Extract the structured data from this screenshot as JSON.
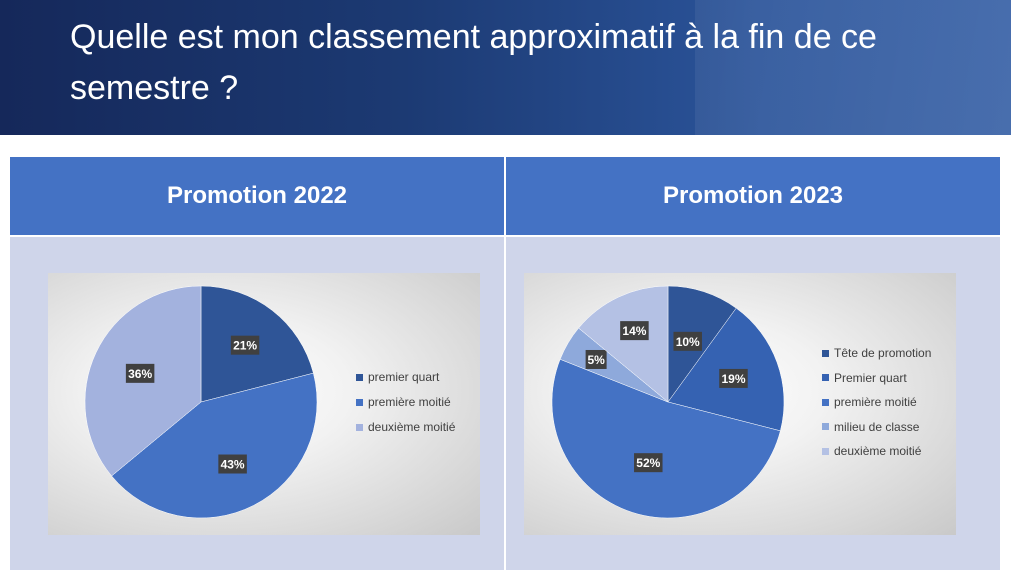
{
  "title": "Quelle est mon classement approximatif à la fin de ce semestre ?",
  "columns": [
    {
      "header": "Promotion 2022"
    },
    {
      "header": "Promotion 2023"
    }
  ],
  "chart_data": [
    {
      "type": "pie",
      "categories": [
        "premier quart",
        "première moitié",
        "deuxième moitié"
      ],
      "values": [
        21,
        43,
        36
      ],
      "labels": [
        "21%",
        "43%",
        "36%"
      ],
      "colors": [
        "#2f5597",
        "#4472c4",
        "#a3b2de"
      ],
      "legend": "right"
    },
    {
      "type": "pie",
      "categories": [
        "Tête de promotion",
        "Premier quart",
        "première moitié",
        "milieu de classe",
        "deuxième moitié"
      ],
      "values": [
        10,
        19,
        52,
        5,
        14
      ],
      "labels": [
        "10%",
        "19%",
        "52%",
        "5%",
        "14%"
      ],
      "colors": [
        "#2f5597",
        "#3562b2",
        "#4472c4",
        "#8ea9db",
        "#b4c1e4"
      ],
      "legend": "right"
    }
  ]
}
